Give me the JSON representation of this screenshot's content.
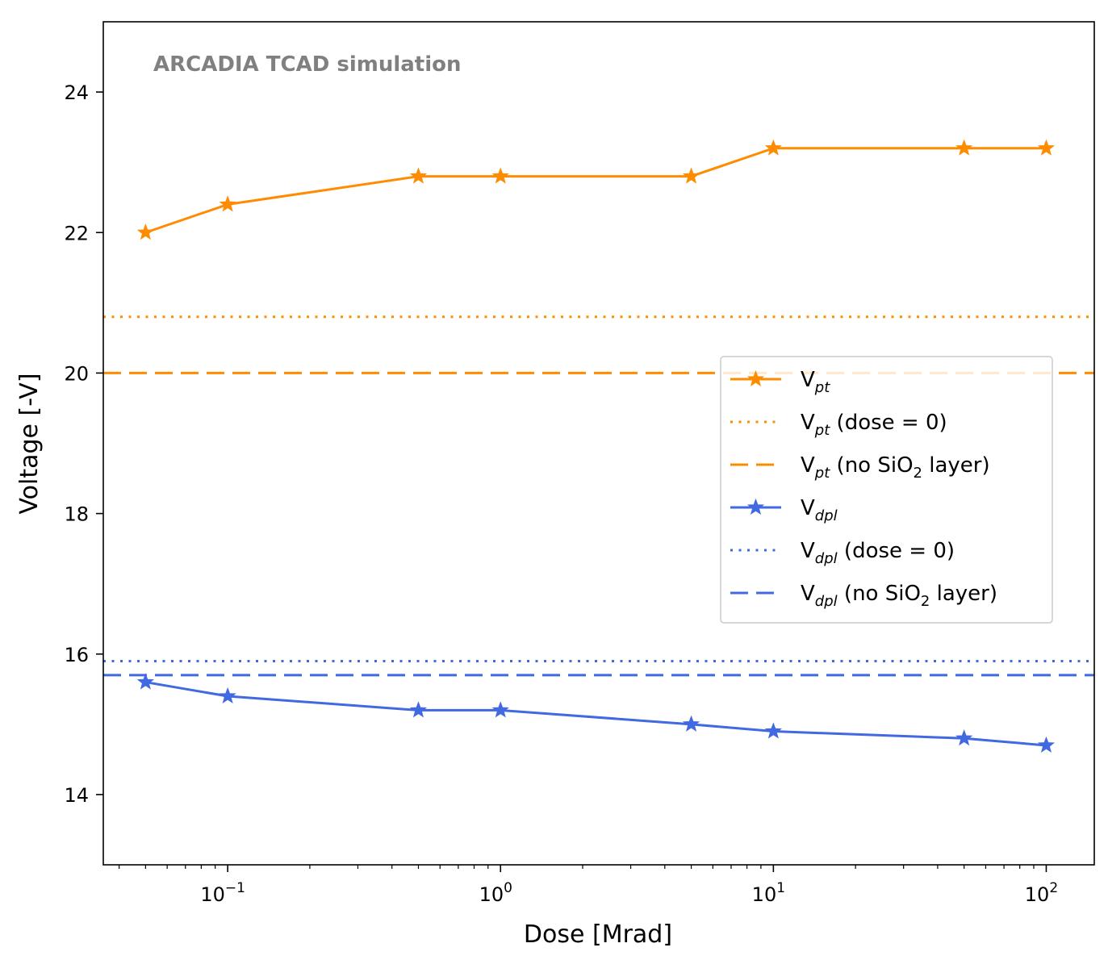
{
  "chart_data": {
    "type": "line",
    "xscale": "log",
    "xlabel": "Dose [Mrad]",
    "ylabel": "Voltage [-V]",
    "xlim": [
      0.035,
      150
    ],
    "ylim": [
      13,
      25
    ],
    "annotation": "ARCADIA TCAD simulation",
    "x": [
      0.05,
      0.1,
      0.5,
      1,
      5,
      10,
      50,
      100
    ],
    "xticks": [
      {
        "value": 0.1,
        "base": "10",
        "exp": "−1"
      },
      {
        "value": 1,
        "base": "10",
        "exp": "0"
      },
      {
        "value": 10,
        "base": "10",
        "exp": "1"
      },
      {
        "value": 100,
        "base": "10",
        "exp": "2"
      }
    ],
    "yticks": [
      14,
      16,
      18,
      20,
      22,
      24
    ],
    "grid": false,
    "legend_position": "center-right",
    "series": [
      {
        "key": "vpt",
        "name": "V_pt",
        "legend_main": "V",
        "legend_sub": "pt",
        "legend_tail": "",
        "color": "#FF8C00",
        "style": "solid-star",
        "values": [
          22.0,
          22.4,
          22.8,
          22.8,
          22.8,
          23.2,
          23.2,
          23.2
        ]
      },
      {
        "key": "vpt0",
        "name": "V_pt (dose = 0)",
        "legend_main": "V",
        "legend_sub": "pt",
        "legend_tail": " (dose = 0)",
        "color": "#FF8C00",
        "style": "dotted",
        "value": 20.8
      },
      {
        "key": "vptno",
        "name": "V_pt (no SiO2 layer)",
        "legend_main": "V",
        "legend_sub": "pt",
        "legend_tail": " (no SiO",
        "legend_sub2": "2",
        "legend_tail2": " layer)",
        "color": "#FF8C00",
        "style": "dashed",
        "value": 20.0
      },
      {
        "key": "vdpl",
        "name": "V_dpl",
        "legend_main": "V",
        "legend_sub": "dpl",
        "legend_tail": "",
        "color": "#4169E1",
        "style": "solid-star",
        "values": [
          15.6,
          15.4,
          15.2,
          15.2,
          15.0,
          14.9,
          14.8,
          14.7
        ]
      },
      {
        "key": "vdpl0",
        "name": "V_dpl (dose = 0)",
        "legend_main": "V",
        "legend_sub": "dpl",
        "legend_tail": " (dose = 0)",
        "color": "#4169E1",
        "style": "dotted",
        "value": 15.9
      },
      {
        "key": "vdplno",
        "name": "V_dpl (no SiO2 layer)",
        "legend_main": "V",
        "legend_sub": "dpl",
        "legend_tail": " (no SiO",
        "legend_sub2": "2",
        "legend_tail2": " layer)",
        "color": "#4169E1",
        "style": "dashed",
        "value": 15.7
      }
    ]
  }
}
